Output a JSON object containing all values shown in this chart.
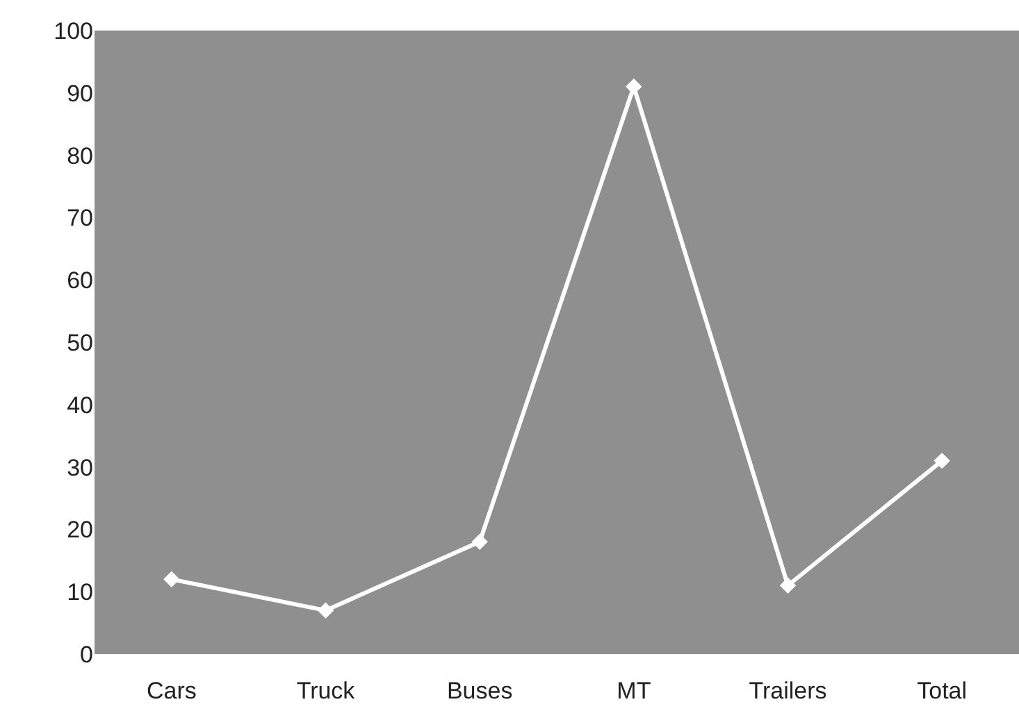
{
  "chart_data": {
    "type": "line",
    "categories": [
      "Cars",
      "Truck",
      "Buses",
      "MT",
      "Trailers",
      "Total"
    ],
    "series": [
      {
        "color": "#ffffff",
        "values": [
          12,
          7,
          18,
          91,
          11,
          31
        ]
      }
    ],
    "ylim": [
      0,
      100
    ],
    "yticks": [
      0,
      10,
      20,
      30,
      40,
      50,
      60,
      70,
      80,
      90,
      100
    ],
    "grid": false,
    "marker": "diamond",
    "line_style": "solid"
  }
}
